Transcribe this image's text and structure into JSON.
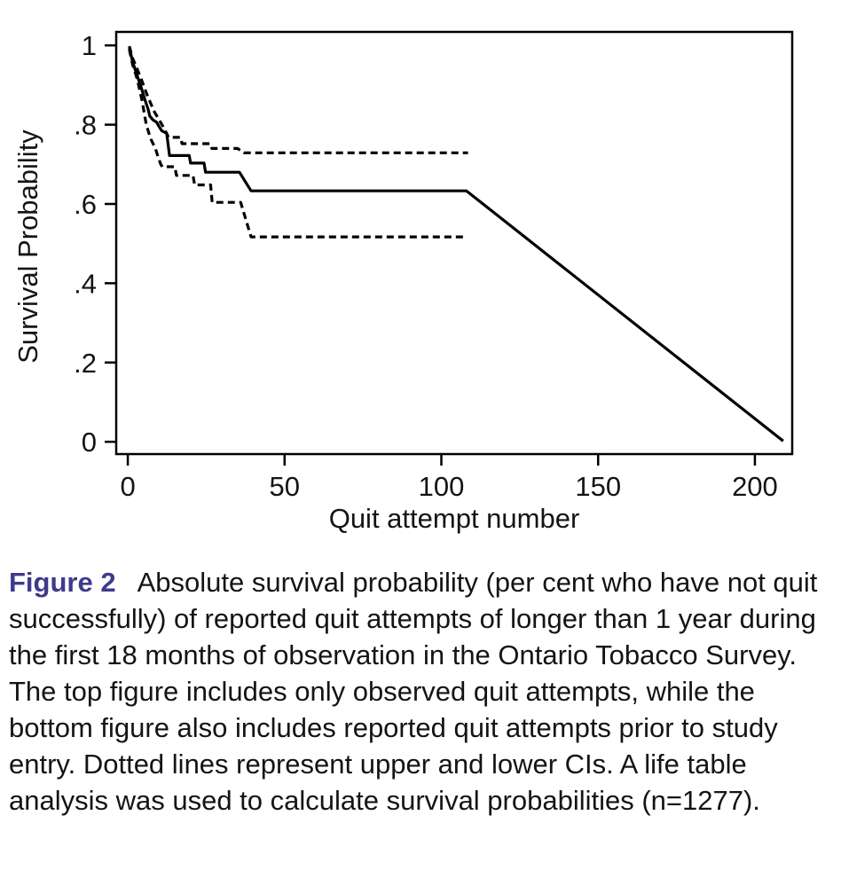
{
  "figure": {
    "caption_label": "Figure 2",
    "caption_text": "Absolute survival probability (per cent who have not quit successfully) of reported quit attempts of longer than 1 year during the first 18 months of observation in the Ontario Tobacco Survey. The top figure includes only observed quit attempts, while the bottom figure also includes reported quit attempts prior to study entry. Dotted lines represent upper and lower CIs. A life table analysis was used to calculate survival probabilities (n=1277).",
    "label_color": "#3e3a8e",
    "text_color": "#141414"
  },
  "chart_data": {
    "type": "line",
    "title": "",
    "xlabel": "Quit attempt number",
    "ylabel": "Survival Probability",
    "xlim": [
      -3.7,
      211.9
    ],
    "ylim": [
      -0.031,
      1.034
    ],
    "x_ticks": [
      0,
      50,
      100,
      150,
      200
    ],
    "x_tick_labels": [
      "0",
      "50",
      "100",
      "150",
      "200"
    ],
    "y_ticks": [
      0,
      0.2,
      0.4,
      0.6,
      0.8,
      1
    ],
    "y_tick_labels": [
      "0",
      ".2",
      ".4",
      ".6",
      ".8",
      "1"
    ],
    "grid": false,
    "legend": "none",
    "line_color": "#000000",
    "axis_color": "#000000",
    "series": [
      {
        "name": "survival-estimate",
        "style": "solid",
        "points": [
          [
            0.5,
            0.995
          ],
          [
            1.5,
            0.96
          ],
          [
            2.5,
            0.935
          ],
          [
            3.5,
            0.912
          ],
          [
            4.5,
            0.888
          ],
          [
            5.5,
            0.862
          ],
          [
            6.5,
            0.838
          ],
          [
            7.0,
            0.822
          ],
          [
            8.0,
            0.812
          ],
          [
            9.2,
            0.806
          ],
          [
            10.0,
            0.795
          ],
          [
            10.8,
            0.785
          ],
          [
            12.4,
            0.778
          ],
          [
            13.3,
            0.722
          ],
          [
            19.6,
            0.722
          ],
          [
            20.0,
            0.703
          ],
          [
            24.3,
            0.703
          ],
          [
            24.8,
            0.68
          ],
          [
            35.6,
            0.68
          ],
          [
            39.3,
            0.633
          ],
          [
            108.0,
            0.633
          ],
          [
            209.0,
            0.002
          ]
        ]
      },
      {
        "name": "upper-ci",
        "style": "dashed",
        "points": [
          [
            0.5,
            0.998
          ],
          [
            1.5,
            0.968
          ],
          [
            3.0,
            0.94
          ],
          [
            4.5,
            0.91
          ],
          [
            6.0,
            0.878
          ],
          [
            7.5,
            0.85
          ],
          [
            8.2,
            0.836
          ],
          [
            10.0,
            0.812
          ],
          [
            11.5,
            0.792
          ],
          [
            13.0,
            0.768
          ],
          [
            16.8,
            0.768
          ],
          [
            17.3,
            0.752
          ],
          [
            26.3,
            0.752
          ],
          [
            26.8,
            0.74
          ],
          [
            35.0,
            0.74
          ],
          [
            37.0,
            0.729
          ],
          [
            108.5,
            0.729
          ]
        ]
      },
      {
        "name": "lower-ci",
        "style": "dashed",
        "points": [
          [
            0.5,
            0.99
          ],
          [
            1.5,
            0.952
          ],
          [
            3.0,
            0.915
          ],
          [
            4.5,
            0.862
          ],
          [
            5.9,
            0.8
          ],
          [
            7.3,
            0.764
          ],
          [
            8.8,
            0.74
          ],
          [
            9.6,
            0.72
          ],
          [
            10.5,
            0.7
          ],
          [
            11.0,
            0.694
          ],
          [
            15.0,
            0.694
          ],
          [
            15.5,
            0.672
          ],
          [
            20.8,
            0.672
          ],
          [
            21.3,
            0.648
          ],
          [
            26.4,
            0.648
          ],
          [
            26.9,
            0.604
          ],
          [
            36.0,
            0.604
          ],
          [
            39.3,
            0.517
          ],
          [
            107.5,
            0.517
          ]
        ]
      }
    ]
  }
}
